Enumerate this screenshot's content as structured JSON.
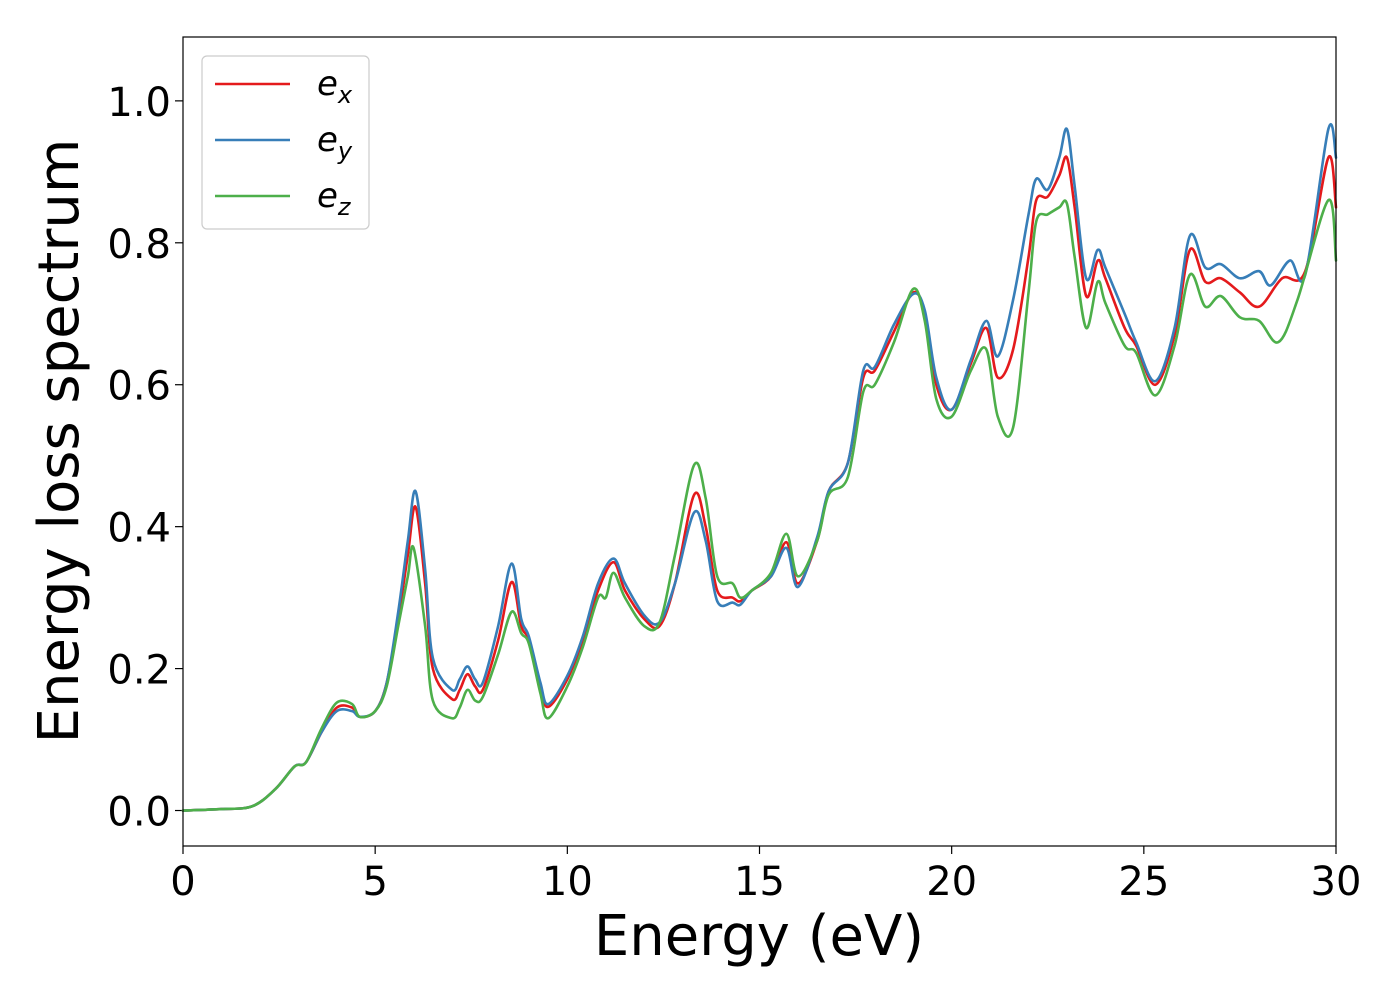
{
  "chart_data": {
    "type": "line",
    "title": "",
    "xlabel": "Energy (eV)",
    "ylabel": "Energy loss spectrum",
    "xlim": [
      0,
      30
    ],
    "ylim": [
      -0.05,
      1.09
    ],
    "xticks": [
      0,
      5,
      10,
      15,
      20,
      25,
      30
    ],
    "xtick_labels": [
      "0",
      "5",
      "10",
      "15",
      "20",
      "25",
      "30"
    ],
    "yticks": [
      0.0,
      0.2,
      0.4,
      0.6,
      0.8,
      1.0
    ],
    "ytick_labels": [
      "0.0",
      "0.2",
      "0.4",
      "0.6",
      "0.8",
      "1.0"
    ],
    "grid": false,
    "legend_position": "top-left",
    "series": [
      {
        "name": "e_x",
        "label_base": "e",
        "label_sub": "x",
        "color": "#e41a1c",
        "points": [
          [
            0,
            0
          ],
          [
            1,
            0.002
          ],
          [
            1.8,
            0.006
          ],
          [
            2.4,
            0.03
          ],
          [
            2.9,
            0.062
          ],
          [
            3.2,
            0.068
          ],
          [
            3.6,
            0.11
          ],
          [
            4,
            0.145
          ],
          [
            4.4,
            0.145
          ],
          [
            4.6,
            0.132
          ],
          [
            5,
            0.14
          ],
          [
            5.3,
            0.18
          ],
          [
            5.6,
            0.27
          ],
          [
            5.85,
            0.36
          ],
          [
            6.05,
            0.428
          ],
          [
            6.3,
            0.32
          ],
          [
            6.5,
            0.2
          ],
          [
            7,
            0.157
          ],
          [
            7.2,
            0.17
          ],
          [
            7.4,
            0.192
          ],
          [
            7.6,
            0.175
          ],
          [
            7.8,
            0.17
          ],
          [
            8.2,
            0.24
          ],
          [
            8.55,
            0.322
          ],
          [
            8.8,
            0.26
          ],
          [
            9,
            0.24
          ],
          [
            9.3,
            0.175
          ],
          [
            9.5,
            0.146
          ],
          [
            10,
            0.185
          ],
          [
            10.4,
            0.24
          ],
          [
            10.8,
            0.31
          ],
          [
            11.2,
            0.35
          ],
          [
            11.5,
            0.31
          ],
          [
            12,
            0.27
          ],
          [
            12.4,
            0.26
          ],
          [
            12.8,
            0.32
          ],
          [
            13.3,
            0.445
          ],
          [
            13.6,
            0.4
          ],
          [
            13.9,
            0.31
          ],
          [
            14.3,
            0.3
          ],
          [
            14.5,
            0.295
          ],
          [
            14.8,
            0.31
          ],
          [
            15.3,
            0.33
          ],
          [
            15.7,
            0.378
          ],
          [
            16,
            0.32
          ],
          [
            16.5,
            0.38
          ],
          [
            16.8,
            0.45
          ],
          [
            17.3,
            0.49
          ],
          [
            17.7,
            0.61
          ],
          [
            18,
            0.62
          ],
          [
            18.5,
            0.675
          ],
          [
            19,
            0.73
          ],
          [
            19.3,
            0.7
          ],
          [
            19.6,
            0.6
          ],
          [
            20,
            0.565
          ],
          [
            20.5,
            0.63
          ],
          [
            20.9,
            0.68
          ],
          [
            21.2,
            0.61
          ],
          [
            21.6,
            0.65
          ],
          [
            22,
            0.78
          ],
          [
            22.2,
            0.86
          ],
          [
            22.5,
            0.865
          ],
          [
            22.8,
            0.895
          ],
          [
            23,
            0.92
          ],
          [
            23.2,
            0.85
          ],
          [
            23.5,
            0.725
          ],
          [
            23.8,
            0.775
          ],
          [
            24,
            0.75
          ],
          [
            24.5,
            0.68
          ],
          [
            24.8,
            0.655
          ],
          [
            25.3,
            0.6
          ],
          [
            25.8,
            0.67
          ],
          [
            26.2,
            0.79
          ],
          [
            26.6,
            0.745
          ],
          [
            27,
            0.75
          ],
          [
            27.5,
            0.73
          ],
          [
            28,
            0.71
          ],
          [
            28.6,
            0.75
          ],
          [
            29.2,
            0.76
          ],
          [
            29.8,
            0.92
          ],
          [
            30,
            0.85
          ]
        ]
      },
      {
        "name": "e_y",
        "label_base": "e",
        "label_sub": "y",
        "color": "#377eb8",
        "points": [
          [
            0,
            0
          ],
          [
            1,
            0.002
          ],
          [
            1.8,
            0.006
          ],
          [
            2.4,
            0.03
          ],
          [
            2.9,
            0.062
          ],
          [
            3.2,
            0.068
          ],
          [
            3.6,
            0.11
          ],
          [
            4,
            0.14
          ],
          [
            4.4,
            0.14
          ],
          [
            4.6,
            0.132
          ],
          [
            5,
            0.14
          ],
          [
            5.3,
            0.18
          ],
          [
            5.6,
            0.28
          ],
          [
            5.85,
            0.38
          ],
          [
            6.05,
            0.45
          ],
          [
            6.3,
            0.34
          ],
          [
            6.5,
            0.215
          ],
          [
            7,
            0.17
          ],
          [
            7.2,
            0.185
          ],
          [
            7.4,
            0.203
          ],
          [
            7.6,
            0.185
          ],
          [
            7.8,
            0.18
          ],
          [
            8.2,
            0.26
          ],
          [
            8.55,
            0.348
          ],
          [
            8.8,
            0.27
          ],
          [
            9,
            0.245
          ],
          [
            9.3,
            0.18
          ],
          [
            9.5,
            0.15
          ],
          [
            10,
            0.19
          ],
          [
            10.4,
            0.245
          ],
          [
            10.8,
            0.32
          ],
          [
            11.2,
            0.355
          ],
          [
            11.5,
            0.32
          ],
          [
            12,
            0.275
          ],
          [
            12.4,
            0.265
          ],
          [
            12.8,
            0.32
          ],
          [
            13.3,
            0.42
          ],
          [
            13.6,
            0.38
          ],
          [
            13.9,
            0.295
          ],
          [
            14.3,
            0.293
          ],
          [
            14.5,
            0.29
          ],
          [
            14.8,
            0.31
          ],
          [
            15.3,
            0.33
          ],
          [
            15.7,
            0.37
          ],
          [
            16,
            0.315
          ],
          [
            16.5,
            0.385
          ],
          [
            16.8,
            0.45
          ],
          [
            17.3,
            0.49
          ],
          [
            17.7,
            0.62
          ],
          [
            18,
            0.625
          ],
          [
            18.5,
            0.685
          ],
          [
            19,
            0.728
          ],
          [
            19.3,
            0.705
          ],
          [
            19.6,
            0.61
          ],
          [
            20,
            0.565
          ],
          [
            20.5,
            0.635
          ],
          [
            20.9,
            0.69
          ],
          [
            21.2,
            0.64
          ],
          [
            21.6,
            0.72
          ],
          [
            22,
            0.84
          ],
          [
            22.2,
            0.89
          ],
          [
            22.5,
            0.875
          ],
          [
            22.8,
            0.92
          ],
          [
            23,
            0.96
          ],
          [
            23.2,
            0.88
          ],
          [
            23.5,
            0.75
          ],
          [
            23.8,
            0.79
          ],
          [
            24,
            0.765
          ],
          [
            24.5,
            0.7
          ],
          [
            24.8,
            0.66
          ],
          [
            25.3,
            0.605
          ],
          [
            25.8,
            0.68
          ],
          [
            26.2,
            0.81
          ],
          [
            26.6,
            0.765
          ],
          [
            27,
            0.77
          ],
          [
            27.5,
            0.75
          ],
          [
            28,
            0.76
          ],
          [
            28.3,
            0.74
          ],
          [
            28.8,
            0.775
          ],
          [
            29.2,
            0.755
          ],
          [
            29.8,
            0.96
          ],
          [
            30,
            0.92
          ]
        ]
      },
      {
        "name": "e_z",
        "label_base": "e",
        "label_sub": "z",
        "color": "#4daf4a",
        "points": [
          [
            0,
            0
          ],
          [
            1,
            0.002
          ],
          [
            1.8,
            0.006
          ],
          [
            2.4,
            0.03
          ],
          [
            2.9,
            0.062
          ],
          [
            3.2,
            0.068
          ],
          [
            3.6,
            0.115
          ],
          [
            4,
            0.152
          ],
          [
            4.4,
            0.15
          ],
          [
            4.6,
            0.132
          ],
          [
            5,
            0.14
          ],
          [
            5.3,
            0.175
          ],
          [
            5.6,
            0.26
          ],
          [
            5.85,
            0.33
          ],
          [
            6,
            0.37
          ],
          [
            6.3,
            0.26
          ],
          [
            6.5,
            0.155
          ],
          [
            7,
            0.13
          ],
          [
            7.2,
            0.145
          ],
          [
            7.4,
            0.17
          ],
          [
            7.6,
            0.155
          ],
          [
            7.8,
            0.16
          ],
          [
            8.2,
            0.22
          ],
          [
            8.55,
            0.28
          ],
          [
            8.8,
            0.25
          ],
          [
            9,
            0.235
          ],
          [
            9.3,
            0.165
          ],
          [
            9.5,
            0.13
          ],
          [
            10,
            0.175
          ],
          [
            10.4,
            0.23
          ],
          [
            10.8,
            0.3
          ],
          [
            11,
            0.3
          ],
          [
            11.2,
            0.335
          ],
          [
            11.5,
            0.3
          ],
          [
            12,
            0.26
          ],
          [
            12.4,
            0.265
          ],
          [
            12.8,
            0.36
          ],
          [
            13.3,
            0.487
          ],
          [
            13.6,
            0.44
          ],
          [
            13.9,
            0.33
          ],
          [
            14.3,
            0.32
          ],
          [
            14.5,
            0.3
          ],
          [
            14.8,
            0.31
          ],
          [
            15.3,
            0.335
          ],
          [
            15.7,
            0.39
          ],
          [
            16,
            0.33
          ],
          [
            16.5,
            0.38
          ],
          [
            16.8,
            0.445
          ],
          [
            17.3,
            0.47
          ],
          [
            17.7,
            0.59
          ],
          [
            18,
            0.6
          ],
          [
            18.5,
            0.66
          ],
          [
            19,
            0.735
          ],
          [
            19.3,
            0.69
          ],
          [
            19.6,
            0.58
          ],
          [
            20,
            0.555
          ],
          [
            20.5,
            0.62
          ],
          [
            20.9,
            0.65
          ],
          [
            21.2,
            0.555
          ],
          [
            21.6,
            0.54
          ],
          [
            22,
            0.73
          ],
          [
            22.2,
            0.83
          ],
          [
            22.5,
            0.84
          ],
          [
            22.8,
            0.85
          ],
          [
            23,
            0.855
          ],
          [
            23.2,
            0.78
          ],
          [
            23.5,
            0.68
          ],
          [
            23.8,
            0.745
          ],
          [
            24,
            0.715
          ],
          [
            24.5,
            0.655
          ],
          [
            24.8,
            0.645
          ],
          [
            25.3,
            0.585
          ],
          [
            25.8,
            0.655
          ],
          [
            26.2,
            0.755
          ],
          [
            26.6,
            0.71
          ],
          [
            27,
            0.725
          ],
          [
            27.5,
            0.695
          ],
          [
            28,
            0.69
          ],
          [
            28.5,
            0.66
          ],
          [
            29,
            0.72
          ],
          [
            29.8,
            0.86
          ],
          [
            30,
            0.775
          ]
        ]
      }
    ]
  }
}
